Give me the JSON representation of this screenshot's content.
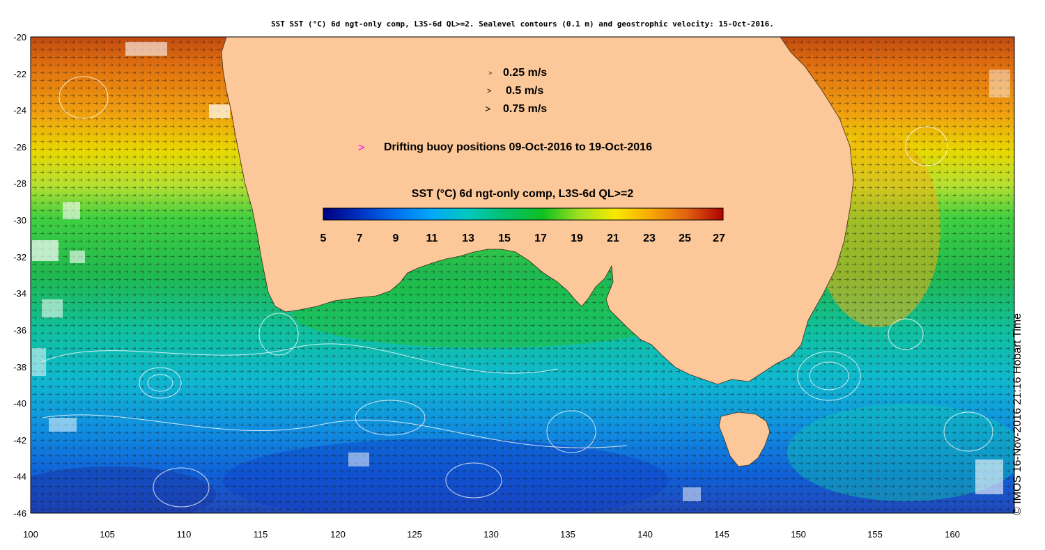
{
  "title": "SST SST (°C) 6d ngt-only comp, L3S-6d QL>=2. Sealevel contours (0.1 m) and geostrophic velocity: 15-Oct-2016.",
  "credit": "© IMOS 16-Nov-2016 21:16 Hobart Time",
  "map": {
    "lon_range": [
      100,
      164.5
    ],
    "lat_range": [
      -46,
      -20
    ],
    "lon_ticks": [
      "100",
      "105",
      "110",
      "115",
      "120",
      "125",
      "130",
      "135",
      "140",
      "145",
      "150",
      "155",
      "160"
    ],
    "lat_ticks": [
      "-20",
      "-22",
      "-24",
      "-26",
      "-28",
      "-30",
      "-32",
      "-34",
      "-36",
      "-38",
      "-40",
      "-42",
      "-44",
      "-46"
    ]
  },
  "legend": {
    "velocity_scale": [
      {
        "glyph": ">",
        "label": "0.25 m/s"
      },
      {
        "glyph": ">",
        "label": "0.5 m/s"
      },
      {
        "glyph": ">",
        "label": "0.75 m/s"
      }
    ],
    "buoy_glyph": ">",
    "buoy_color": "#ff00ff",
    "buoy_label": "Drifting buoy positions 09-Oct-2016 to 19-Oct-2016"
  },
  "colorbar": {
    "title": "SST (°C) 6d ngt-only comp, L3S-6d QL>=2",
    "ticks": [
      "5",
      "7",
      "9",
      "11",
      "13",
      "15",
      "17",
      "19",
      "21",
      "23",
      "25",
      "27"
    ],
    "range": [
      5,
      27
    ]
  },
  "colors": {
    "land": "#fcc899",
    "background": "#ffffff"
  }
}
